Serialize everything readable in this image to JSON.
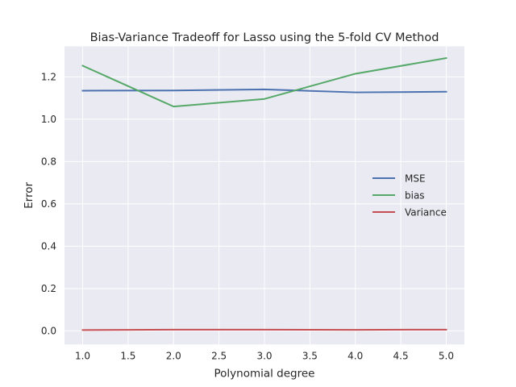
{
  "chart_data": {
    "type": "line",
    "title": "Bias-Variance Tradeoff for Lasso using the 5-fold CV Method",
    "xlabel": "Polynomial degree",
    "ylabel": "Error",
    "x": [
      1.0,
      2.0,
      3.0,
      4.0,
      5.0
    ],
    "xlim": [
      0.8,
      5.2
    ],
    "ylim": [
      -0.064,
      1.344
    ],
    "xticks": [
      "1.0",
      "1.5",
      "2.0",
      "2.5",
      "3.0",
      "3.5",
      "4.0",
      "4.5",
      "5.0"
    ],
    "yticks": [
      "0.0",
      "0.2",
      "0.4",
      "0.6",
      "0.8",
      "1.0",
      "1.2"
    ],
    "grid": true,
    "background": "#eaeaf2",
    "legend": {
      "placement": "center-right"
    },
    "series": [
      {
        "name": "MSE",
        "color": "#4c72b0",
        "values": [
          1.135,
          1.136,
          1.141,
          1.127,
          1.13
        ]
      },
      {
        "name": "bias",
        "color": "#55a868",
        "values": [
          1.253,
          1.06,
          1.096,
          1.215,
          1.289
        ]
      },
      {
        "name": "Variance",
        "color": "#c44e52",
        "values": [
          0.004,
          0.006,
          0.006,
          0.005,
          0.006
        ]
      }
    ]
  }
}
